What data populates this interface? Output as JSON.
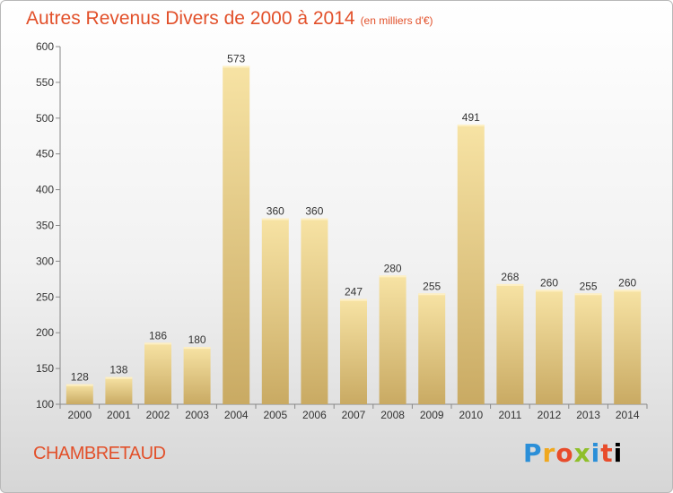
{
  "header": {
    "title": "Autres Revenus Divers de 2000 à 2014",
    "subtitle": "(en milliers d'€)"
  },
  "footer": {
    "place": "CHAMBRETAUD",
    "logo_letters": [
      "P",
      "r",
      "o",
      "x",
      "i",
      "t",
      "i"
    ]
  },
  "colors": {
    "bar_light": "#f7e3a4",
    "bar_dark": "#c9aa63",
    "title": "#e2502a"
  },
  "chart_data": {
    "type": "bar",
    "title": "Autres Revenus Divers de 2000 à 2014",
    "subtitle": "(en milliers d'€)",
    "xlabel": "",
    "ylabel": "",
    "categories": [
      "2000",
      "2001",
      "2002",
      "2003",
      "2004",
      "2005",
      "2006",
      "2007",
      "2008",
      "2009",
      "2010",
      "2011",
      "2012",
      "2013",
      "2014"
    ],
    "values": [
      128,
      138,
      186,
      180,
      573,
      360,
      360,
      247,
      280,
      255,
      491,
      268,
      260,
      255,
      260
    ],
    "ylim": [
      100,
      600
    ],
    "yticks": [
      100,
      150,
      200,
      250,
      300,
      350,
      400,
      450,
      500,
      550,
      600
    ],
    "grid": false,
    "data_labels": true
  }
}
